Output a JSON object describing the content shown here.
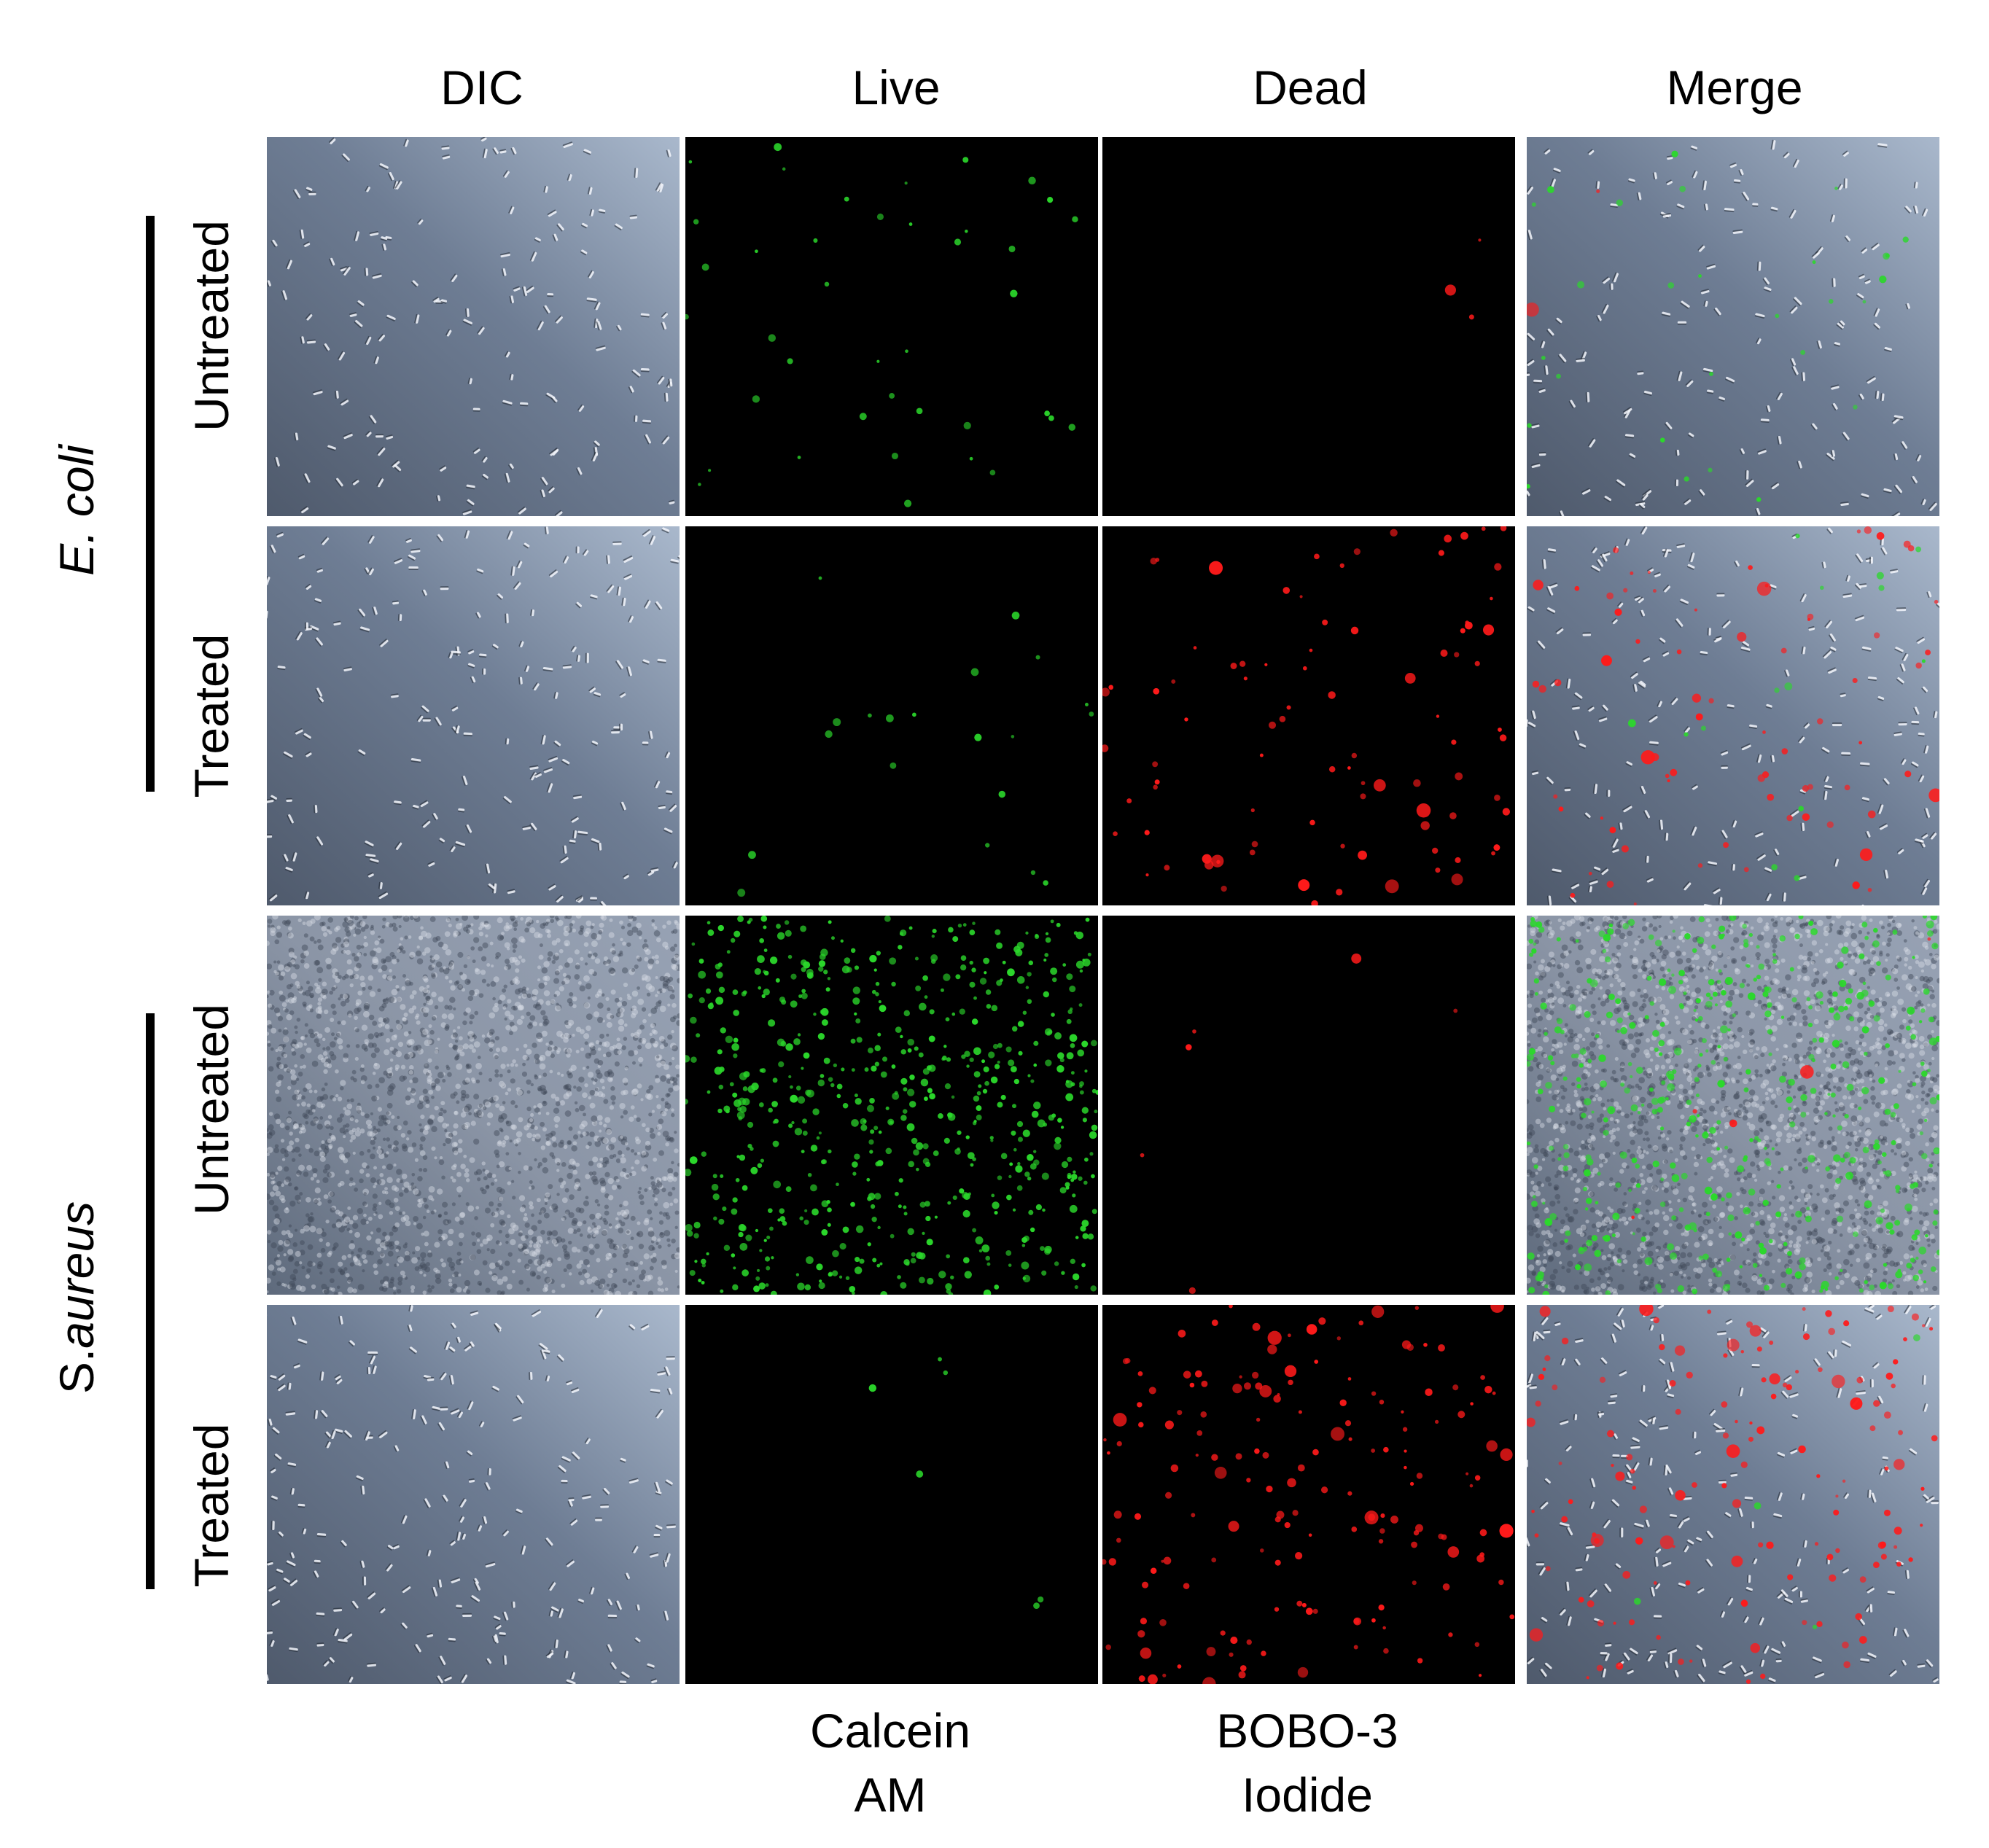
{
  "columns": {
    "dic": "DIC",
    "live": "Live",
    "dead": "Dead",
    "merge": "Merge"
  },
  "stains": {
    "live_line1": "Calcein",
    "live_line2": "AM",
    "dead_line1": "BOBO-3",
    "dead_line2": "Iodide"
  },
  "species": {
    "ecoli": "E. coli",
    "saureus_prefix": "S.",
    "saureus_name": "aureus"
  },
  "rows": {
    "ecoli_untreated": "Untreated",
    "ecoli_treated": "Treated",
    "saureus_untreated": "Untreated",
    "saureus_treated": "Treated"
  },
  "colors": {
    "live_stain": "#2bd82b",
    "dead_stain": "#ff1a1a",
    "dic_background": "#6f7f96",
    "fluorescence_background": "#000000"
  }
}
